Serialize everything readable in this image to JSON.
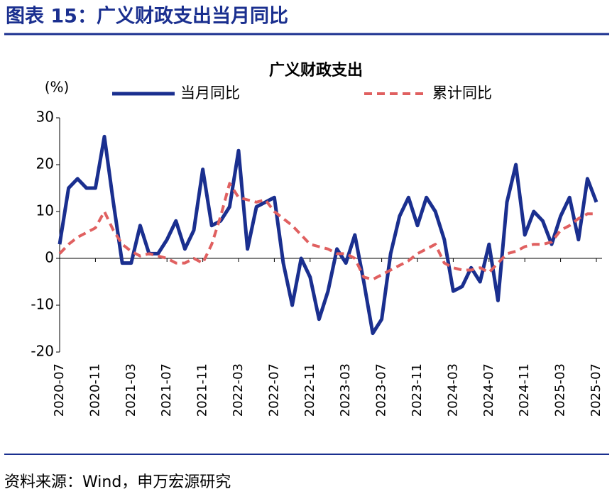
{
  "header": {
    "title": "图表 15：广义财政支出当月同比"
  },
  "chart_data": {
    "type": "line",
    "title": "广义财政支出",
    "y_label": "(%)",
    "categories": [
      "2020-07",
      null,
      null,
      null,
      "2020-11",
      null,
      null,
      null,
      "2021-03",
      null,
      null,
      null,
      "2021-07",
      null,
      null,
      null,
      "2021-11",
      null,
      null,
      null,
      "2022-03",
      null,
      null,
      null,
      "2022-07",
      null,
      null,
      null,
      "2022-11",
      null,
      null,
      null,
      "2023-03",
      null,
      null,
      null,
      "2023-07",
      null,
      null,
      null,
      "2023-11",
      null,
      null,
      null,
      "2024-03",
      null,
      null,
      null,
      "2024-07",
      null,
      null,
      null,
      "2024-11",
      null,
      null,
      null,
      "2025-03",
      null,
      null,
      null,
      "2025-07"
    ],
    "series": [
      {
        "name": "当月同比",
        "color": "#1a2f8f",
        "style": "solid",
        "values": [
          3,
          15,
          17,
          15,
          15,
          26,
          12,
          -1,
          -1,
          7,
          1,
          1,
          4,
          8,
          2,
          6,
          19,
          7,
          8,
          11,
          23,
          2,
          11,
          12,
          13,
          -1,
          -10,
          0,
          -4,
          -13,
          -7,
          2,
          -1,
          5,
          -5,
          -16,
          -13,
          1,
          9,
          13,
          7,
          13,
          10,
          4,
          -7,
          -6,
          -2,
          -5,
          3,
          -9,
          12,
          20,
          5,
          10,
          8,
          3,
          9,
          13,
          4,
          17,
          12
        ]
      },
      {
        "name": "累计同比",
        "color": "#e06060",
        "style": "dashed",
        "values": [
          1,
          3,
          4.5,
          5.5,
          6.5,
          10,
          6,
          3,
          1.5,
          0.5,
          1,
          0.5,
          0,
          -1,
          -1,
          0,
          -1,
          3,
          9,
          16,
          13,
          12.5,
          12,
          12.5,
          10,
          8.5,
          7,
          5,
          3,
          2.5,
          2,
          1,
          1,
          0,
          -4,
          -4.5,
          -3.5,
          -2.5,
          -1.5,
          -0.5,
          1,
          2,
          3,
          -1,
          -2,
          -2.5,
          -2.5,
          -2,
          -3,
          -1,
          1,
          1.5,
          2.5,
          3,
          3,
          3.5,
          6,
          7,
          8.5,
          9.5,
          9.5
        ]
      }
    ],
    "ylim": [
      -20,
      30
    ],
    "yticks": [
      -20,
      -10,
      0,
      10,
      20,
      30
    ]
  },
  "source": "资料来源：Wind，申万宏源研究"
}
